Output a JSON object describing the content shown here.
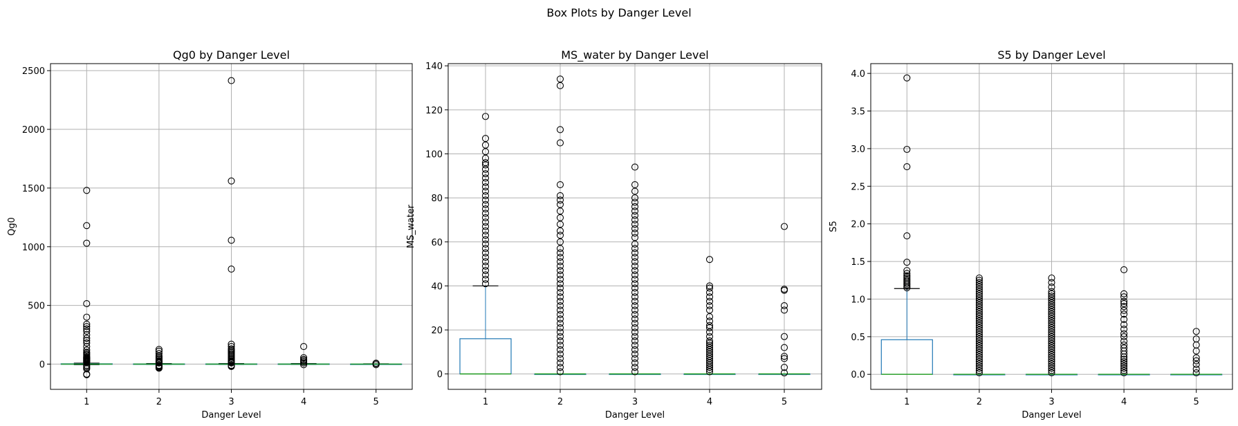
{
  "figure_title": "Box Plots by Danger Level",
  "chart_data": [
    {
      "type": "box",
      "title": "Qg0 by Danger Level",
      "xlabel": "Danger Level",
      "ylabel": "Qg0",
      "categories": [
        "1",
        "2",
        "3",
        "4",
        "5"
      ],
      "ylim": [
        -215,
        2560
      ],
      "yticks": [
        0,
        500,
        1000,
        1500,
        2000,
        2500
      ],
      "grid": true,
      "boxes": [
        {
          "q1": 0,
          "median": 0,
          "q3": 3,
          "whisker_low": -5,
          "whisker_high": 8,
          "outliers": [
            -90,
            -85,
            -40,
            -30,
            -20,
            -10,
            15,
            20,
            25,
            30,
            35,
            40,
            45,
            50,
            55,
            60,
            70,
            80,
            90,
            100,
            120,
            150,
            180,
            200,
            220,
            250,
            280,
            300,
            320,
            340,
            400,
            515,
            1030,
            1180,
            1480
          ]
        },
        {
          "q1": 0,
          "median": 0,
          "q3": 2,
          "whisker_low": -3,
          "whisker_high": 5,
          "outliers": [
            -35,
            -30,
            -25,
            -20,
            -15,
            -10,
            10,
            15,
            20,
            25,
            30,
            40,
            50,
            60,
            70,
            90,
            110,
            125
          ]
        },
        {
          "q1": 0,
          "median": 0,
          "q3": 2,
          "whisker_low": -3,
          "whisker_high": 5,
          "outliers": [
            -20,
            -15,
            -10,
            10,
            15,
            20,
            25,
            30,
            40,
            50,
            60,
            70,
            80,
            90,
            100,
            110,
            120,
            130,
            150,
            170,
            810,
            1055,
            1560,
            2415
          ]
        },
        {
          "q1": 0,
          "median": 0,
          "q3": 2,
          "whisker_low": -3,
          "whisker_high": 5,
          "outliers": [
            -5,
            10,
            20,
            30,
            40,
            55,
            150
          ]
        },
        {
          "q1": 0,
          "median": 0,
          "q3": 1,
          "whisker_low": -2,
          "whisker_high": 3,
          "outliers": [
            -5,
            5,
            8
          ]
        }
      ]
    },
    {
      "type": "box",
      "title": "MS_water by Danger Level",
      "xlabel": "Danger Level",
      "ylabel": "MS_water",
      "categories": [
        "1",
        "2",
        "3",
        "4",
        "5"
      ],
      "ylim": [
        -7,
        141
      ],
      "yticks": [
        0,
        20,
        40,
        60,
        80,
        100,
        120,
        140
      ],
      "grid": true,
      "boxes": [
        {
          "q1": 0,
          "median": 0,
          "q3": 16,
          "whisker_low": 0,
          "whisker_high": 40,
          "outliers": [
            41,
            43,
            45,
            47,
            49,
            51,
            53,
            55,
            57,
            59,
            61,
            63,
            65,
            67,
            69,
            71,
            73,
            75,
            77,
            79,
            81,
            83,
            85,
            87,
            89,
            91,
            93,
            95,
            96,
            98,
            101,
            104,
            107,
            117
          ]
        },
        {
          "q1": 0,
          "median": 0,
          "q3": 0,
          "whisker_low": 0,
          "whisker_high": 0,
          "outliers": [
            1,
            3,
            5,
            7,
            9,
            11,
            13,
            15,
            17,
            19,
            21,
            23,
            25,
            27,
            29,
            31,
            33,
            35,
            37,
            39,
            41,
            43,
            45,
            47,
            49,
            51,
            53,
            55,
            57,
            60,
            63,
            65,
            68,
            71,
            74,
            77,
            79,
            81,
            86,
            105,
            111,
            131,
            134
          ]
        },
        {
          "q1": 0,
          "median": 0,
          "q3": 0,
          "whisker_low": 0,
          "whisker_high": 0,
          "outliers": [
            1,
            3,
            5,
            7,
            9,
            11,
            13,
            15,
            17,
            19,
            21,
            23,
            25,
            27,
            29,
            31,
            33,
            35,
            37,
            39,
            41,
            43,
            45,
            47,
            49,
            51,
            53,
            55,
            57,
            59,
            62,
            64,
            66,
            68,
            70,
            72,
            74,
            76,
            78,
            80,
            83,
            86,
            94
          ]
        },
        {
          "q1": 0,
          "median": 0,
          "q3": 0,
          "whisker_low": 0,
          "whisker_high": 0,
          "outliers": [
            1,
            2,
            3,
            4,
            5,
            6,
            7,
            8,
            9,
            10,
            11,
            12,
            13,
            14,
            15,
            17,
            19,
            21,
            22,
            24,
            26,
            29,
            31,
            33,
            35,
            37,
            39,
            40,
            52
          ]
        },
        {
          "q1": 0,
          "median": 0,
          "q3": 0,
          "whisker_low": 0,
          "whisker_high": 0,
          "outliers": [
            0.5,
            3,
            7,
            8,
            12,
            17,
            29,
            31,
            38,
            38.5,
            67
          ]
        }
      ]
    },
    {
      "type": "box",
      "title": "S5 by Danger Level",
      "xlabel": "Danger Level",
      "ylabel": "S5",
      "categories": [
        "1",
        "2",
        "3",
        "4",
        "5"
      ],
      "ylim": [
        -0.2,
        4.13
      ],
      "yticks": [
        0.0,
        0.5,
        1.0,
        1.5,
        2.0,
        2.5,
        3.0,
        3.5,
        4.0
      ],
      "grid": true,
      "boxes": [
        {
          "q1": 0,
          "median": 0,
          "q3": 0.46,
          "whisker_low": 0,
          "whisker_high": 1.14,
          "outliers": [
            1.15,
            1.17,
            1.19,
            1.21,
            1.23,
            1.25,
            1.27,
            1.29,
            1.31,
            1.34,
            1.38,
            1.49,
            1.84,
            2.76,
            2.99,
            3.94
          ]
        },
        {
          "q1": 0,
          "median": 0,
          "q3": 0,
          "whisker_low": 0,
          "whisker_high": 0,
          "outliers": [
            0.02,
            0.05,
            0.08,
            0.11,
            0.14,
            0.17,
            0.2,
            0.23,
            0.26,
            0.29,
            0.32,
            0.35,
            0.38,
            0.41,
            0.44,
            0.47,
            0.5,
            0.53,
            0.56,
            0.59,
            0.62,
            0.65,
            0.68,
            0.71,
            0.74,
            0.77,
            0.8,
            0.83,
            0.86,
            0.89,
            0.92,
            0.95,
            0.98,
            1.01,
            1.04,
            1.07,
            1.1,
            1.13,
            1.16,
            1.19,
            1.22,
            1.25,
            1.28
          ]
        },
        {
          "q1": 0,
          "median": 0,
          "q3": 0,
          "whisker_low": 0,
          "whisker_high": 0,
          "outliers": [
            0.02,
            0.05,
            0.08,
            0.11,
            0.14,
            0.17,
            0.2,
            0.23,
            0.26,
            0.29,
            0.32,
            0.35,
            0.38,
            0.41,
            0.44,
            0.47,
            0.5,
            0.53,
            0.56,
            0.59,
            0.62,
            0.65,
            0.68,
            0.71,
            0.74,
            0.77,
            0.8,
            0.83,
            0.86,
            0.89,
            0.92,
            0.95,
            0.98,
            1.01,
            1.04,
            1.07,
            1.1,
            1.16,
            1.22,
            1.28
          ]
        },
        {
          "q1": 0,
          "median": 0,
          "q3": 0,
          "whisker_low": 0,
          "whisker_high": 0,
          "outliers": [
            0.02,
            0.05,
            0.08,
            0.11,
            0.14,
            0.17,
            0.2,
            0.23,
            0.27,
            0.31,
            0.35,
            0.39,
            0.44,
            0.5,
            0.54,
            0.6,
            0.66,
            0.73,
            0.8,
            0.85,
            0.9,
            0.94,
            0.97,
            1.03,
            1.07,
            1.39
          ]
        },
        {
          "q1": 0,
          "median": 0,
          "q3": 0,
          "whisker_low": 0,
          "whisker_high": 0,
          "outliers": [
            0.02,
            0.07,
            0.13,
            0.18,
            0.22,
            0.31,
            0.39,
            0.47,
            0.57
          ]
        }
      ]
    }
  ]
}
